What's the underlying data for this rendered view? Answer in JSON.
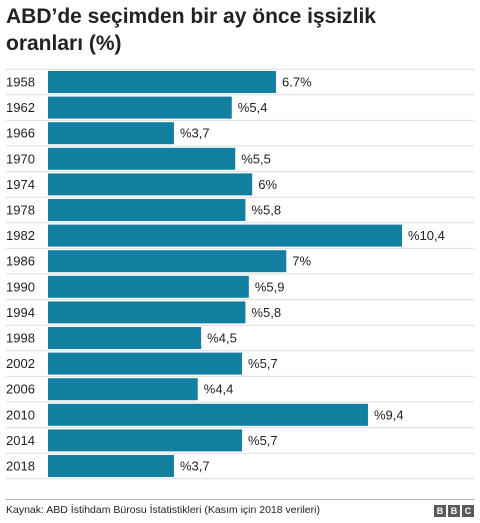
{
  "chart_data": {
    "type": "bar",
    "orientation": "horizontal",
    "title": "ABD’de seçimden bir ay önce işsizlik oranları (%)",
    "categories": [
      "1958",
      "1962",
      "1966",
      "1970",
      "1974",
      "1978",
      "1982",
      "1986",
      "1990",
      "1994",
      "1998",
      "2002",
      "2006",
      "2010",
      "2014",
      "2018"
    ],
    "values": [
      6.7,
      5.4,
      3.7,
      5.5,
      6.0,
      5.8,
      10.4,
      7.0,
      5.9,
      5.8,
      4.5,
      5.7,
      4.4,
      9.4,
      5.7,
      3.7
    ],
    "value_labels": [
      "6.7%",
      "%5,4",
      "%3,7",
      "%5,5",
      "6%",
      "%5,8",
      "%10,4",
      "7%",
      "%5,9",
      "%5,8",
      "%4,5",
      "%5,7",
      "%4,4",
      "%9,4",
      "%5,7",
      "%3,7"
    ],
    "xlim": [
      0,
      10.4
    ],
    "bar_color": "#1380A1",
    "grid": false
  },
  "source": "Kaynak: ABD İstihdam Bürosu İstatistikleri (Kasım için 2018 verileri)",
  "logo": {
    "letters": [
      "B",
      "B",
      "C"
    ]
  }
}
